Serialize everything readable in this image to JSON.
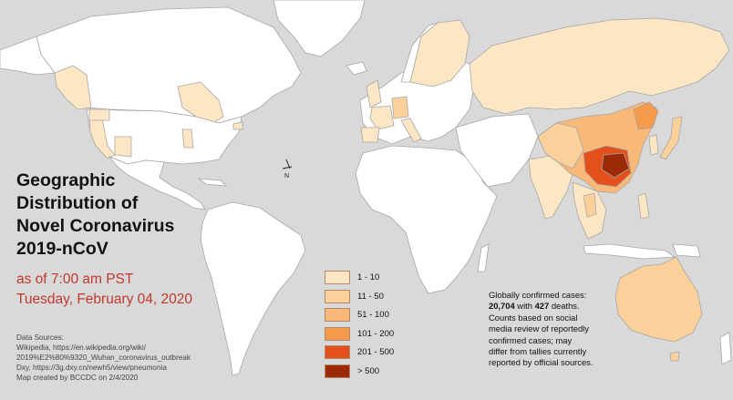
{
  "title": {
    "line1": "Geographic",
    "line2": "Distribution of",
    "line3": "Novel Coronavirus",
    "line4": "2019-nCoV"
  },
  "subtitle": {
    "time": "as of 7:00 am PST",
    "date": "Tuesday, February 04, 2020"
  },
  "compass": {
    "label": "N"
  },
  "legend": {
    "items": [
      {
        "label": "1 - 10",
        "color": "#fde6c4"
      },
      {
        "label": "11 - 50",
        "color": "#fbd09a"
      },
      {
        "label": "51 - 100",
        "color": "#f9b877"
      },
      {
        "label": "101 - 200",
        "color": "#f59a4c"
      },
      {
        "label": "201 - 500",
        "color": "#e3501b"
      },
      {
        "label": "> 500",
        "color": "#9c2a06"
      }
    ]
  },
  "note": {
    "line1": "Globally confirmed cases:",
    "cases": "20,704",
    "with_text": " with ",
    "deaths": "427",
    "deaths_text": " deaths.",
    "line3": "Counts based on social",
    "line4": "media review of reportedly",
    "line5": "confirmed cases; may",
    "line6": "differ from tallies currently",
    "line7": "reported by official sources."
  },
  "sources": {
    "heading": "Data Sources:",
    "line1": "Wikipedia, https://en.wikipedia.org/wiki/",
    "line2": "2019%E2%80%9320_Wuhan_coronavirus_outbreak",
    "line3": "Dxy, https://3g.dxy.cn/newh5/view/pneumonia",
    "credit": "Map created by BCCDC on 2/4/2020"
  },
  "colors": {
    "ocean": "#d9d9d9",
    "land": "#ffffff",
    "border": "#a6a6a6",
    "title_text": "#111111",
    "date_text": "#c0392b"
  }
}
